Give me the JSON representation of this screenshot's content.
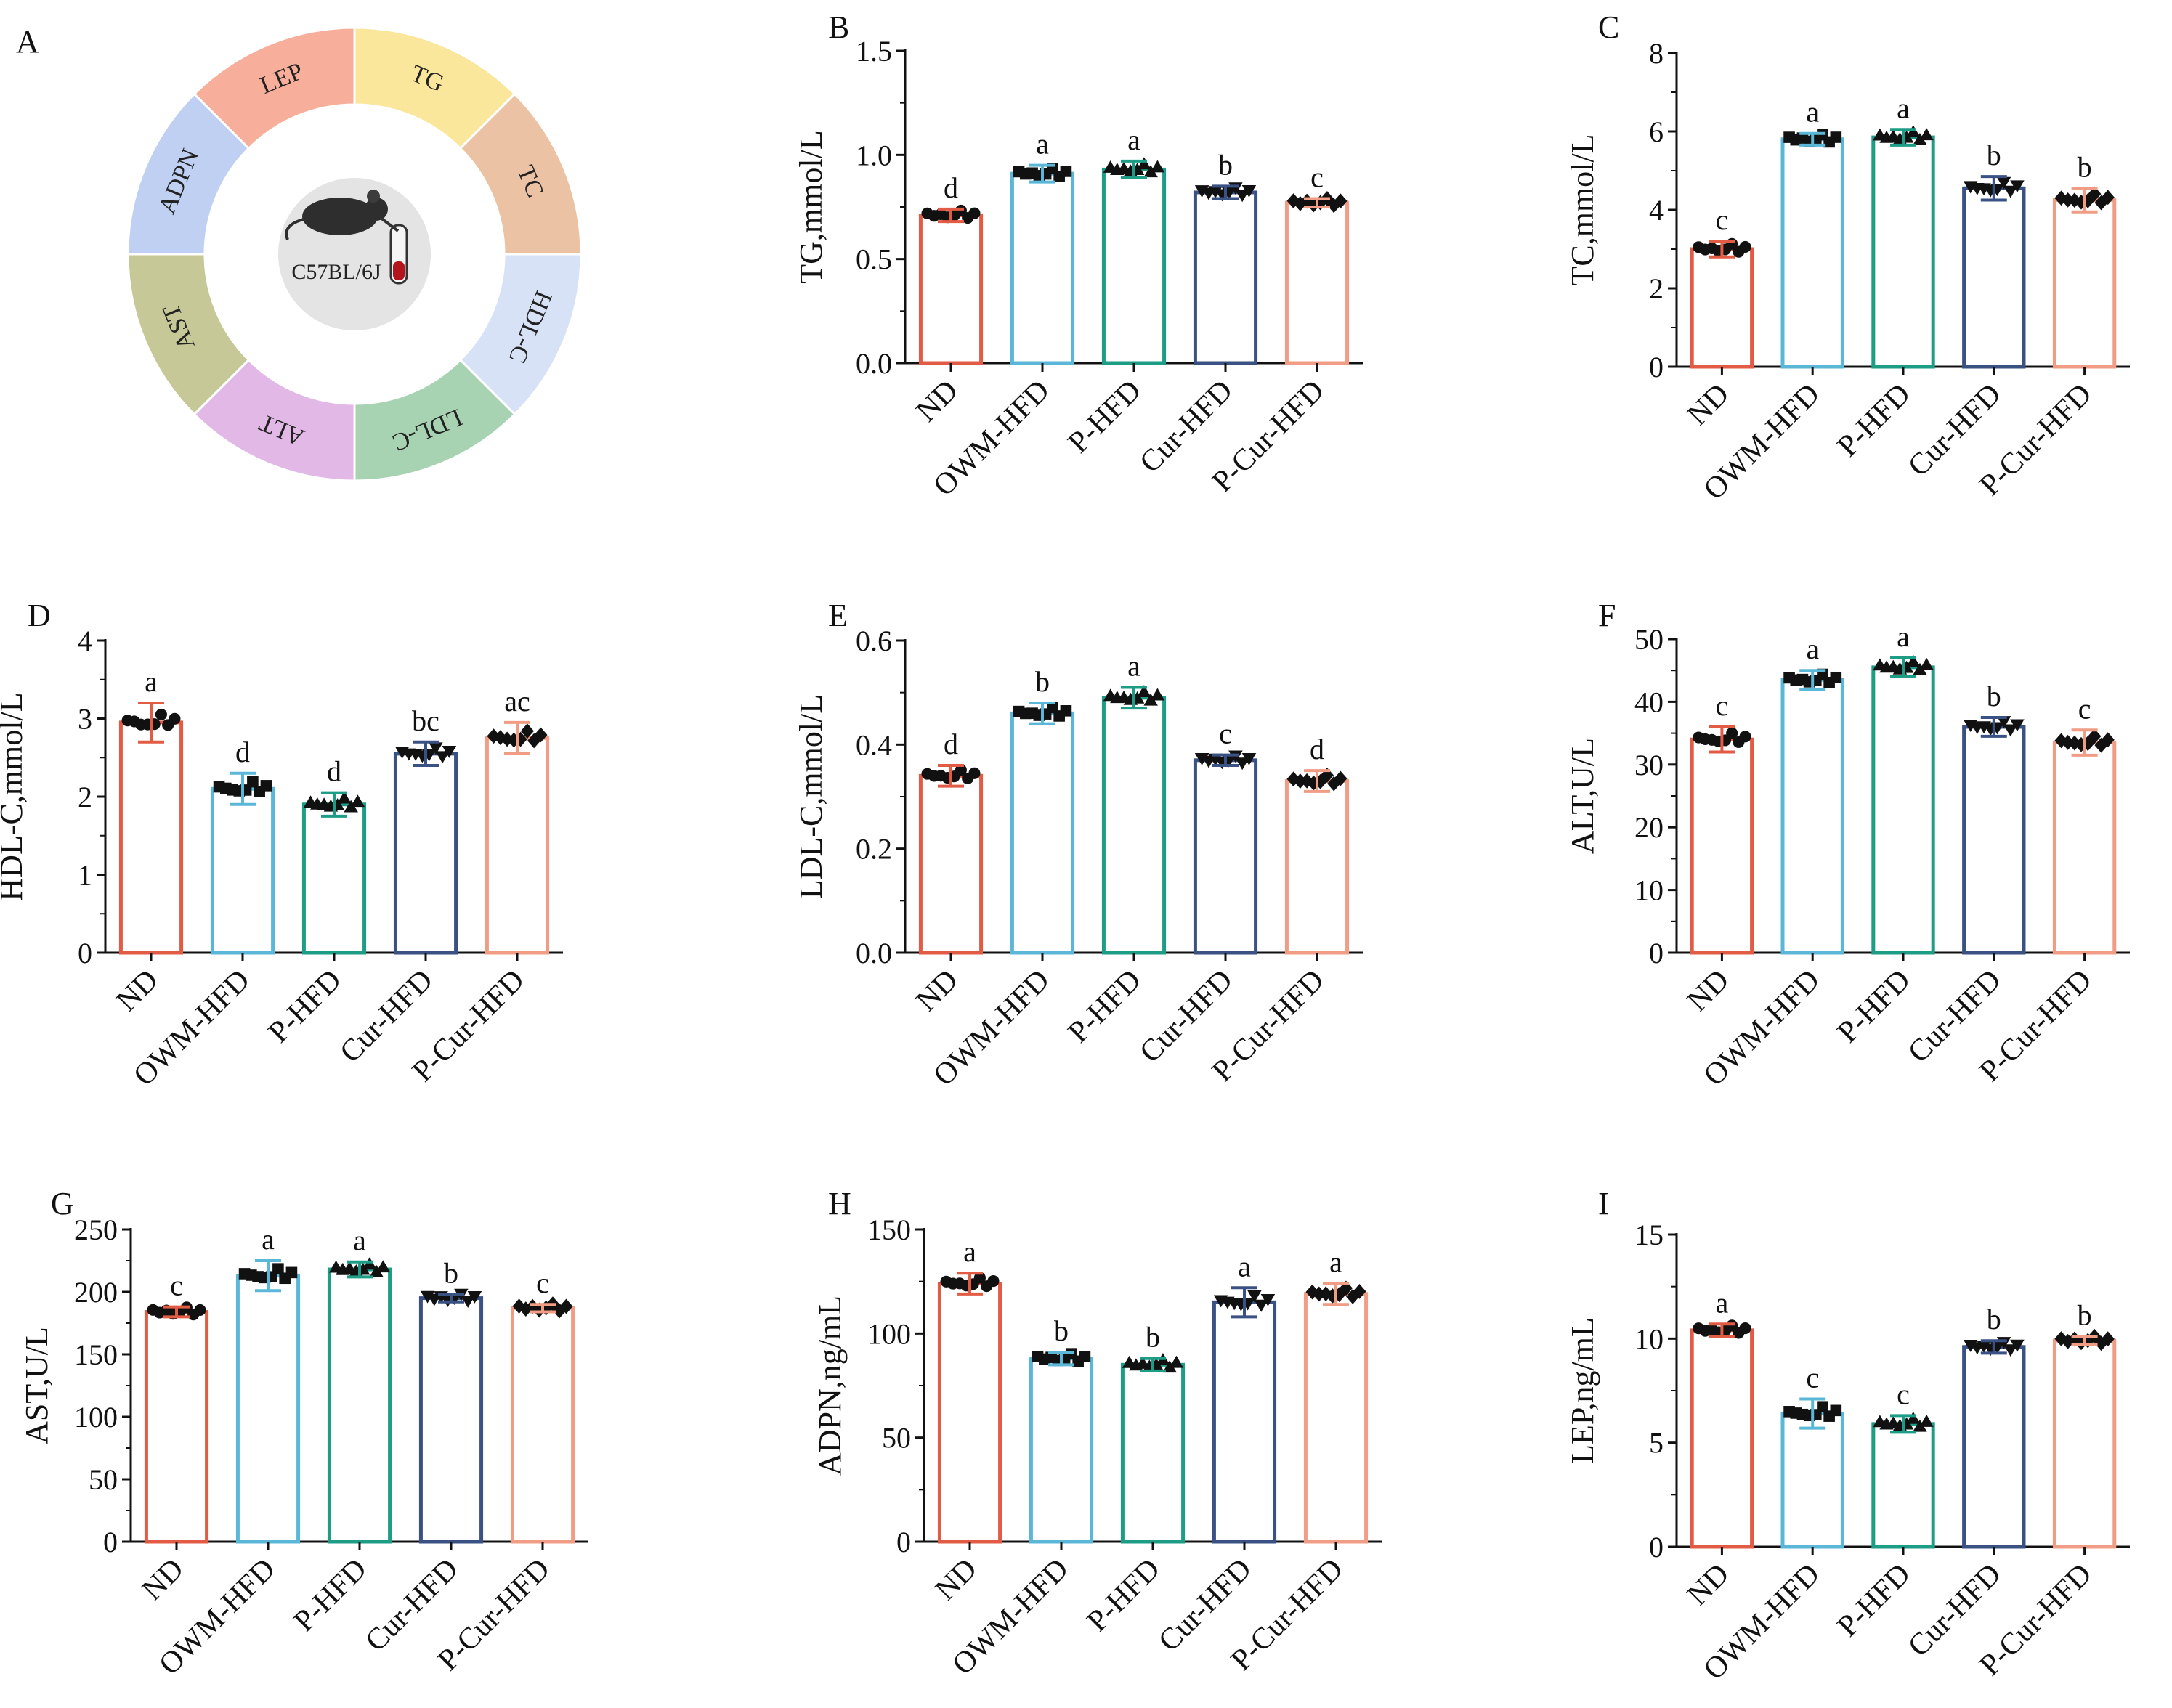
{
  "panel_a": {
    "label": "A",
    "center_label": "C57BL/6J",
    "segments": [
      {
        "name": "LEP",
        "color": "#f7ae9b"
      },
      {
        "name": "TG",
        "color": "#fbe79c"
      },
      {
        "name": "TC",
        "color": "#ebc2a3"
      },
      {
        "name": "HDL-C",
        "color": "#d8e2f7"
      },
      {
        "name": "LDL-C",
        "color": "#a8d3b3"
      },
      {
        "name": "ALT",
        "color": "#e1b8e6"
      },
      {
        "name": "AST",
        "color": "#c6c897"
      },
      {
        "name": "ADPN",
        "color": "#bfd0f2"
      }
    ]
  },
  "groups": [
    {
      "name": "ND",
      "color": "#e25c45",
      "marker": "circle"
    },
    {
      "name": "OWM-HFD",
      "color": "#5bb7d8",
      "marker": "square"
    },
    {
      "name": "P-HFD",
      "color": "#1e9d86",
      "marker": "triangle-up"
    },
    {
      "name": "Cur-HFD",
      "color": "#3a5283",
      "marker": "triangle-down"
    },
    {
      "name": "P-Cur-HFD",
      "color": "#f19c84",
      "marker": "diamond"
    }
  ],
  "chart_data": [
    {
      "panel": "B",
      "type": "bar",
      "ylabel": "TG,mmol/L",
      "ylim": [
        0,
        1.5
      ],
      "ticks": [
        "0.0",
        "0.5",
        "1.0",
        "1.5"
      ],
      "categories": [
        "ND",
        "OWM-HFD",
        "P-HFD",
        "Cur-HFD",
        "P-Cur-HFD"
      ],
      "values": [
        0.71,
        0.91,
        0.93,
        0.82,
        0.77
      ],
      "errors": [
        0.03,
        0.04,
        0.04,
        0.03,
        0.02
      ],
      "significance": [
        "d",
        "a",
        "a",
        "b",
        "c"
      ]
    },
    {
      "panel": "C",
      "type": "bar",
      "ylabel": "TC,mmol/L",
      "ylim": [
        0,
        8
      ],
      "ticks": [
        "0",
        "2",
        "4",
        "6",
        "8"
      ],
      "categories": [
        "ND",
        "OWM-HFD",
        "P-HFD",
        "Cur-HFD",
        "P-Cur-HFD"
      ],
      "values": [
        3.0,
        5.8,
        5.85,
        4.55,
        4.25
      ],
      "errors": [
        0.2,
        0.15,
        0.2,
        0.3,
        0.3
      ],
      "significance": [
        "c",
        "a",
        "a",
        "b",
        "b"
      ]
    },
    {
      "panel": "D",
      "type": "bar",
      "ylabel": "HDL-C,mmol/L",
      "ylim": [
        0,
        4
      ],
      "ticks": [
        "0",
        "1",
        "2",
        "3",
        "4"
      ],
      "categories": [
        "ND",
        "OWM-HFD",
        "P-HFD",
        "Cur-HFD",
        "P-Cur-HFD"
      ],
      "values": [
        2.95,
        2.1,
        1.9,
        2.55,
        2.75
      ],
      "errors": [
        0.25,
        0.2,
        0.15,
        0.15,
        0.2
      ],
      "significance": [
        "a",
        "d",
        "d",
        "bc",
        "ac"
      ]
    },
    {
      "panel": "E",
      "type": "bar",
      "ylabel": "LDL-C,mmol/L",
      "ylim": [
        0,
        0.6
      ],
      "ticks": [
        "0.0",
        "0.2",
        "0.4",
        "0.6"
      ],
      "categories": [
        "ND",
        "OWM-HFD",
        "P-HFD",
        "Cur-HFD",
        "P-Cur-HFD"
      ],
      "values": [
        0.34,
        0.46,
        0.49,
        0.37,
        0.33
      ],
      "errors": [
        0.02,
        0.02,
        0.02,
        0.01,
        0.02
      ],
      "significance": [
        "d",
        "b",
        "a",
        "c",
        "d"
      ]
    },
    {
      "panel": "F",
      "type": "bar",
      "ylabel": "ALT,U/L",
      "ylim": [
        0,
        50
      ],
      "ticks": [
        "0",
        "10",
        "20",
        "30",
        "40",
        "50"
      ],
      "categories": [
        "ND",
        "OWM-HFD",
        "P-HFD",
        "Cur-HFD",
        "P-Cur-HFD"
      ],
      "values": [
        34,
        43.5,
        45.5,
        36,
        33.5
      ],
      "errors": [
        2,
        1.5,
        1.5,
        1.5,
        2
      ],
      "significance": [
        "c",
        "a",
        "a",
        "b",
        "c"
      ]
    },
    {
      "panel": "G",
      "type": "bar",
      "ylabel": "AST,U/L",
      "ylim": [
        0,
        250
      ],
      "ticks": [
        "0",
        "50",
        "100",
        "150",
        "200",
        "250"
      ],
      "categories": [
        "ND",
        "OWM-HFD",
        "P-HFD",
        "Cur-HFD",
        "P-Cur-HFD"
      ],
      "values": [
        184,
        213,
        218,
        195,
        187
      ],
      "errors": [
        4,
        12,
        6,
        3,
        3
      ],
      "significance": [
        "c",
        "a",
        "a",
        "b",
        "c"
      ]
    },
    {
      "panel": "H",
      "type": "bar",
      "ylabel": "ADPN,ng/mL",
      "ylim": [
        0,
        150
      ],
      "ticks": [
        "0",
        "50",
        "100",
        "150"
      ],
      "categories": [
        "ND",
        "OWM-HFD",
        "P-HFD",
        "Cur-HFD",
        "P-Cur-HFD"
      ],
      "values": [
        124,
        88,
        85,
        115,
        119
      ],
      "errors": [
        5,
        3,
        3,
        7,
        5
      ],
      "significance": [
        "a",
        "b",
        "b",
        "a",
        "a"
      ]
    },
    {
      "panel": "I",
      "type": "bar",
      "ylabel": "LEP,ng/mL",
      "ylim": [
        0,
        15
      ],
      "ticks": [
        "0",
        "5",
        "10",
        "15"
      ],
      "categories": [
        "ND",
        "OWM-HFD",
        "P-HFD",
        "Cur-HFD",
        "P-Cur-HFD"
      ],
      "values": [
        10.4,
        6.4,
        5.9,
        9.6,
        9.9
      ],
      "errors": [
        0.3,
        0.7,
        0.4,
        0.3,
        0.2
      ],
      "significance": [
        "a",
        "c",
        "c",
        "b",
        "b"
      ]
    }
  ]
}
